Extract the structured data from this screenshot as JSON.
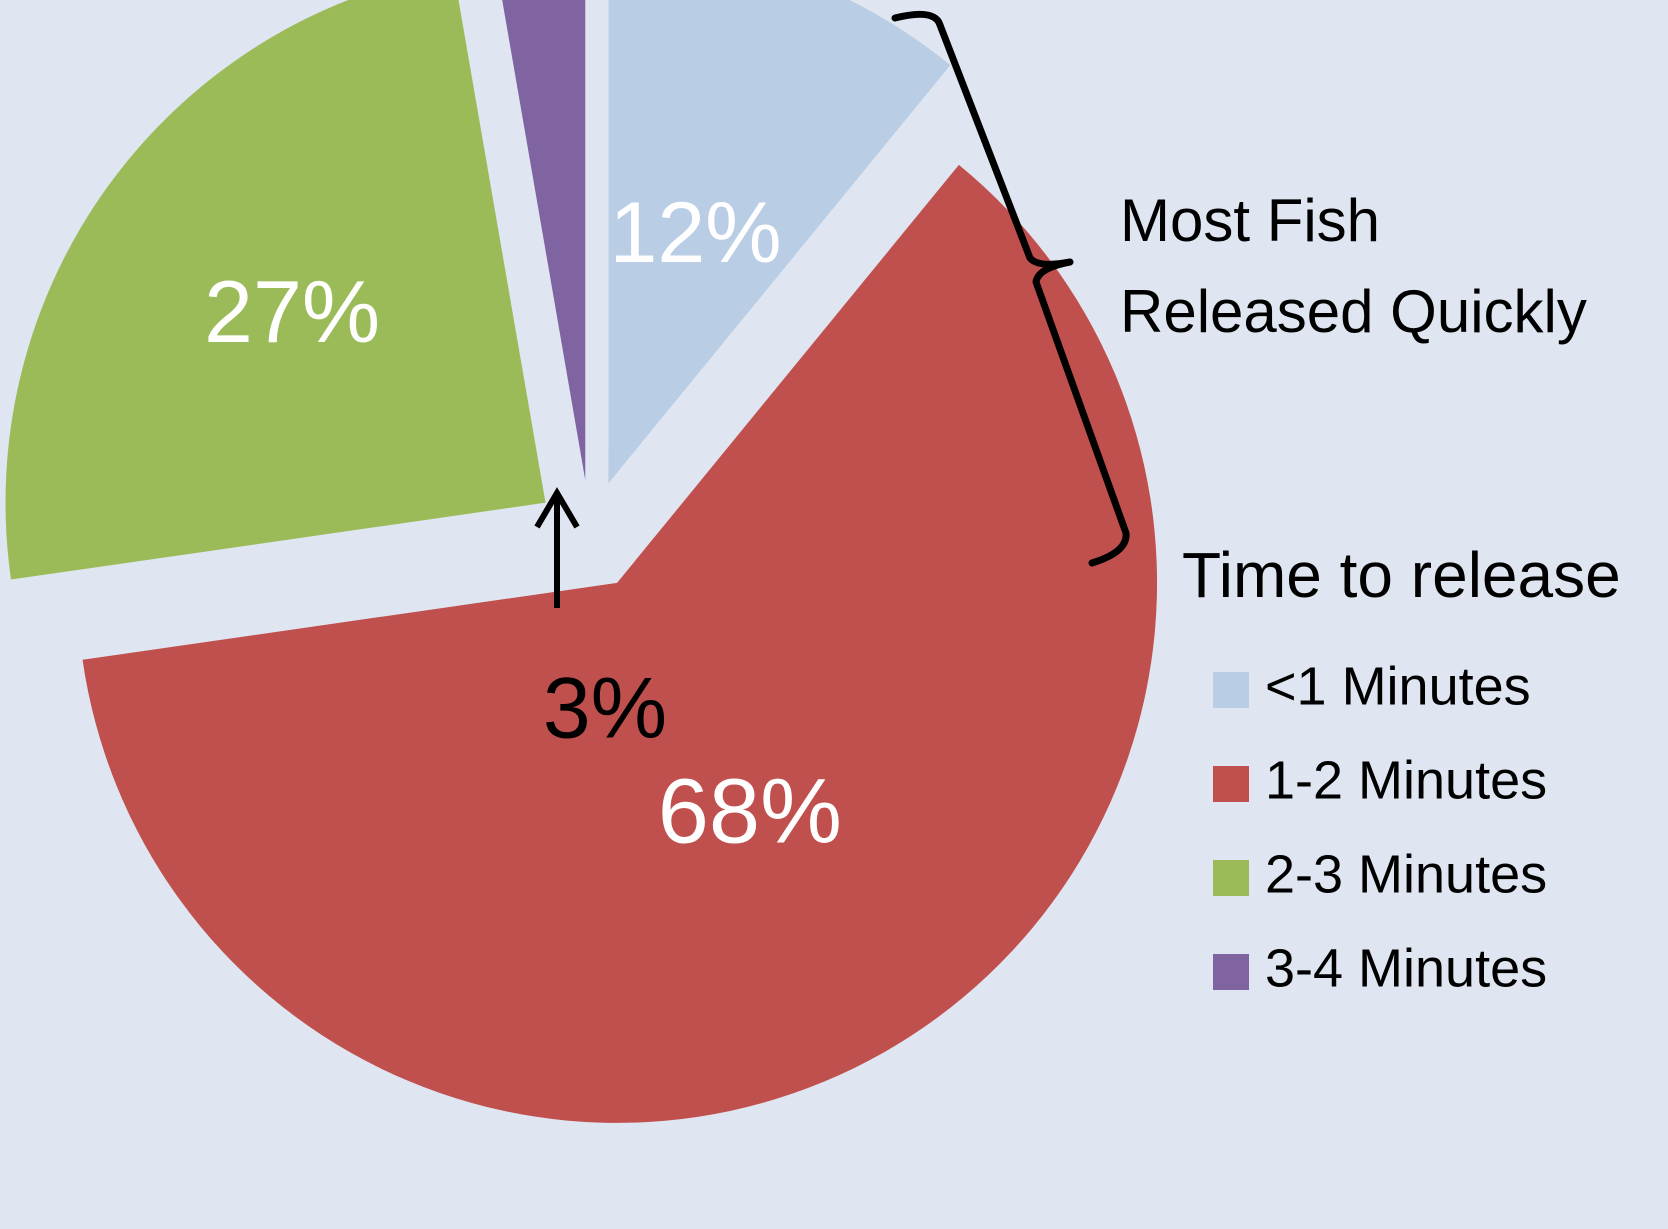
{
  "chart_data": {
    "type": "pie",
    "title": "",
    "legend_title": "Time to release",
    "legend_position": "right",
    "slices": [
      {
        "name": "<1 Minutes",
        "value": 12,
        "label": "12%",
        "color": "#b9cde4",
        "label_color": "#ffffff",
        "exploded": true
      },
      {
        "name": "1-2 Minutes",
        "value": 68,
        "label": "68%",
        "color": "#c0504d",
        "label_color": "#ffffff",
        "exploded": true
      },
      {
        "name": "2-3 Minutes",
        "value": 27,
        "label": "27%",
        "color": "#9bbb59",
        "label_color": "#ffffff",
        "exploded": true
      },
      {
        "name": "3-4 Minutes",
        "value": 3,
        "label": "3%",
        "color": "#8064a2",
        "label_color": "#000000",
        "exploded": true
      }
    ],
    "annotation": {
      "bracket_text_line1": "Most Fish",
      "bracket_text_line2": "Released Quickly",
      "arrow_target": "3-4 Minutes"
    }
  },
  "colors": {
    "background": "#dfe6f1",
    "text": "#000000",
    "slice_label": "#ffffff"
  }
}
